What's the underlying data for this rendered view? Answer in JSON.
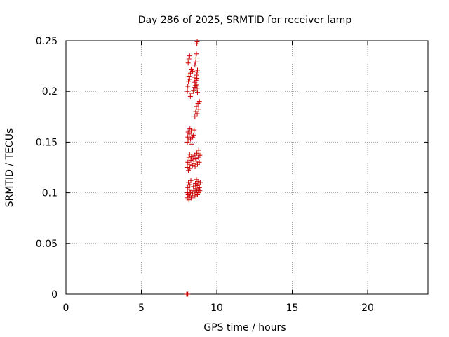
{
  "chart_data": {
    "type": "scatter",
    "title": "Day 286 of 2025, SRMTID for receiver lamp",
    "xlabel": "GPS time / hours",
    "ylabel": "SRMTID / TECUs",
    "xlim": [
      0,
      24
    ],
    "ylim": [
      0,
      0.25
    ],
    "xticks": [
      0,
      5,
      10,
      15,
      20
    ],
    "yticks": [
      0,
      0.05,
      0.1,
      0.15,
      0.2,
      0.25
    ],
    "xtick_labels": [
      "0",
      "5",
      "10",
      "15",
      "20"
    ],
    "ytick_labels": [
      "0",
      "0.05",
      "0.1",
      "0.15",
      "0.2",
      "0.25"
    ],
    "grid": true,
    "legend": "none",
    "marker": "plus",
    "colors": {
      "points": "#cc0000",
      "grid": "#a0a0a0",
      "axes": "#000000"
    },
    "series": [
      {
        "x": [
          8.05,
          8.06,
          8.08,
          8.1,
          8.12,
          8.15,
          8.18,
          8.2,
          8.22,
          8.25,
          8.28,
          8.3,
          8.35,
          8.4,
          8.45,
          8.5,
          8.55,
          8.58,
          8.6,
          8.62,
          8.65,
          8.68,
          8.7,
          8.72,
          8.75,
          8.78,
          8.8,
          8.82,
          8.85,
          8.88,
          8.9,
          8.05,
          8.08,
          8.12,
          8.15,
          8.18,
          8.2,
          8.22,
          8.28,
          8.32,
          8.38,
          8.42,
          8.48,
          8.52,
          8.56,
          8.6,
          8.64,
          8.68,
          8.72,
          8.76,
          8.8,
          8.84,
          8.88,
          8.05,
          8.08,
          8.1,
          8.14,
          8.18,
          8.22,
          8.26,
          8.3,
          8.35,
          8.4,
          8.45,
          8.5,
          8.55,
          8.6,
          8.65,
          8.7,
          8.75,
          8.8,
          8.85,
          8.25,
          8.35,
          8.45,
          8.55,
          8.65,
          8.7,
          8.72,
          8.05,
          8.08,
          8.12,
          8.15,
          8.2,
          8.25,
          8.3,
          8.4,
          8.5,
          8.55,
          8.6,
          8.62,
          8.65,
          8.68,
          8.7,
          8.72,
          8.1,
          8.15,
          8.2,
          8.55,
          8.6,
          8.62,
          8.65,
          8.68,
          8.7,
          8.0,
          8.02,
          8.04,
          8.06,
          8.08
        ],
        "y": [
          0.095,
          0.1,
          0.105,
          0.098,
          0.11,
          0.093,
          0.103,
          0.097,
          0.108,
          0.1,
          0.112,
          0.095,
          0.102,
          0.099,
          0.106,
          0.101,
          0.097,
          0.109,
          0.104,
          0.1,
          0.113,
          0.102,
          0.107,
          0.098,
          0.111,
          0.103,
          0.1,
          0.108,
          0.105,
          0.102,
          0.11,
          0.125,
          0.13,
          0.122,
          0.135,
          0.128,
          0.138,
          0.124,
          0.132,
          0.136,
          0.127,
          0.133,
          0.129,
          0.137,
          0.126,
          0.134,
          0.131,
          0.139,
          0.128,
          0.135,
          0.142,
          0.13,
          0.137,
          0.15,
          0.155,
          0.16,
          0.152,
          0.158,
          0.163,
          0.153,
          0.161,
          0.148,
          0.155,
          0.157,
          0.162,
          0.175,
          0.18,
          0.185,
          0.178,
          0.188,
          0.182,
          0.19,
          0.195,
          0.198,
          0.201,
          0.204,
          0.207,
          0.203,
          0.199,
          0.2,
          0.205,
          0.21,
          0.215,
          0.212,
          0.218,
          0.222,
          0.22,
          0.214,
          0.209,
          0.206,
          0.211,
          0.216,
          0.213,
          0.219,
          0.221,
          0.228,
          0.232,
          0.235,
          0.226,
          0.229,
          0.233,
          0.237,
          0.247,
          0.249,
          0.0,
          0.0,
          0.0,
          0.0,
          0.0
        ]
      }
    ]
  }
}
